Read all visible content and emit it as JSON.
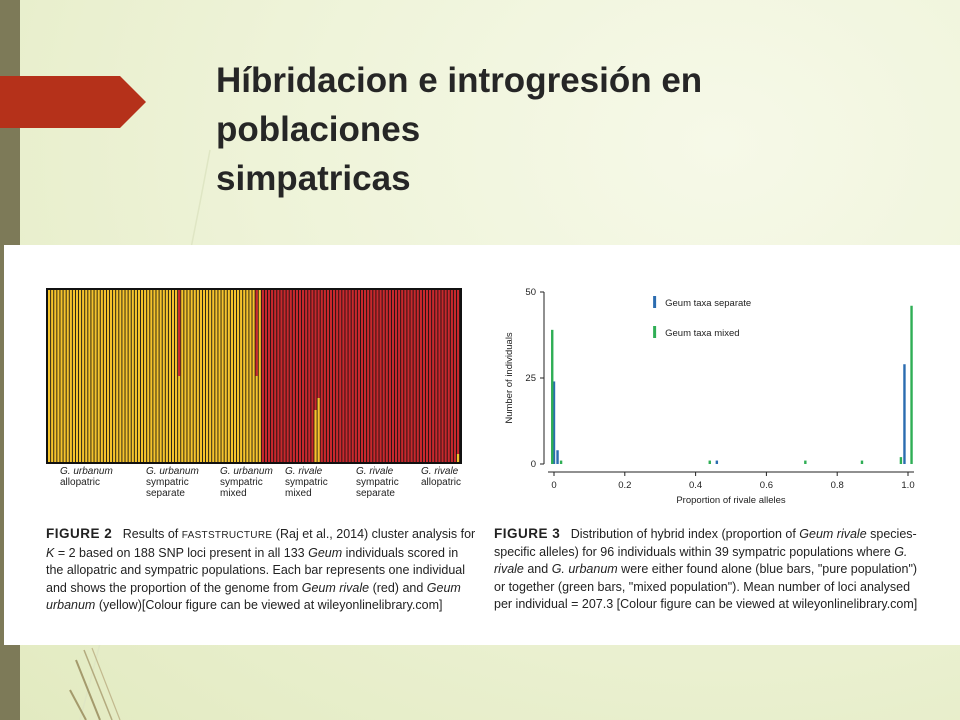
{
  "slide": {
    "title_lines": [
      "Híbridacion e introgresión en",
      "poblaciones",
      "simpatricas"
    ],
    "colors": {
      "background": "#eef3d8",
      "left_bar": "#7d7a58",
      "arrow": "#b5311a",
      "title": "#262626"
    }
  },
  "figure2": {
    "colors": {
      "yellow": "#f5c32c",
      "red": "#c8282d"
    },
    "groups": [
      {
        "species": "G. urbanum",
        "desc": [
          "allopatric"
        ]
      },
      {
        "species": "G. urbanum",
        "desc": [
          "sympatric",
          "separate"
        ]
      },
      {
        "species": "G. urbanum",
        "desc": [
          "sympatric",
          "mixed"
        ]
      },
      {
        "species": "G. rivale",
        "desc": [
          "sympatric",
          "mixed"
        ]
      },
      {
        "species": "G. rivale",
        "desc": [
          "sympatric",
          "separate"
        ]
      },
      {
        "species": "G. rivale",
        "desc": [
          "allopatric"
        ]
      }
    ],
    "caption": {
      "label": "FIGURE 2",
      "t1": "Results of ",
      "method": "FASTSTRUCTURE",
      "t2": " (Raj et al., 2014) cluster analysis for ",
      "k": "K",
      "t3": " = 2 based on 188 SNP loci present in all 133 ",
      "geum1": "Geum",
      "t4": " individuals scored in the allopatric and sympatric populations. Each bar represents one individual and shows the proportion of the genome from ",
      "geum2": "Geum rivale",
      "t5": " (red) and ",
      "geum3": "Geum urbanum",
      "t6": " (yellow)[Colour figure can be viewed at wileyonlinelibrary.com]"
    }
  },
  "figure3": {
    "caption": {
      "label": "FIGURE 3",
      "t1": "Distribution of hybrid index (proportion of ",
      "geum1": "Geum rivale",
      "t2": " species-specific alleles) for 96 individuals within 39 sympatric populations where ",
      "rivale": "G. rivale",
      "t3": " and ",
      "urbanum": "G. urbanum",
      "t4": " were either found alone (blue bars, \"pure population\") or together (green bars, \"mixed population\"). Mean number of loci analysed per individual = 207.3 [Colour figure can be viewed at wileyonlinelibrary.com]"
    }
  },
  "chart_data": {
    "type": "bar",
    "title": "",
    "xlabel": "Proportion of rivale alleles",
    "ylabel": "Number of individuals",
    "xlim": [
      0,
      1.0
    ],
    "ylim": [
      0,
      50
    ],
    "xticks": [
      "0",
      "0.2",
      "0.4",
      "0.6",
      "0.8",
      "1.0"
    ],
    "yticks": [
      "0",
      "25",
      "50"
    ],
    "legend": "top-center",
    "series": [
      {
        "name": "Geum taxa separate",
        "color": "#2b6cb0",
        "x": [
          0.0,
          0.01,
          0.46,
          0.99
        ],
        "values": [
          24,
          4,
          1,
          29
        ]
      },
      {
        "name": "Geum taxa mixed",
        "color": "#2fae55",
        "x": [
          -0.005,
          0.02,
          0.44,
          0.71,
          0.87,
          0.98,
          1.01
        ],
        "values": [
          39,
          1,
          1,
          1,
          1,
          2,
          46
        ]
      }
    ]
  }
}
